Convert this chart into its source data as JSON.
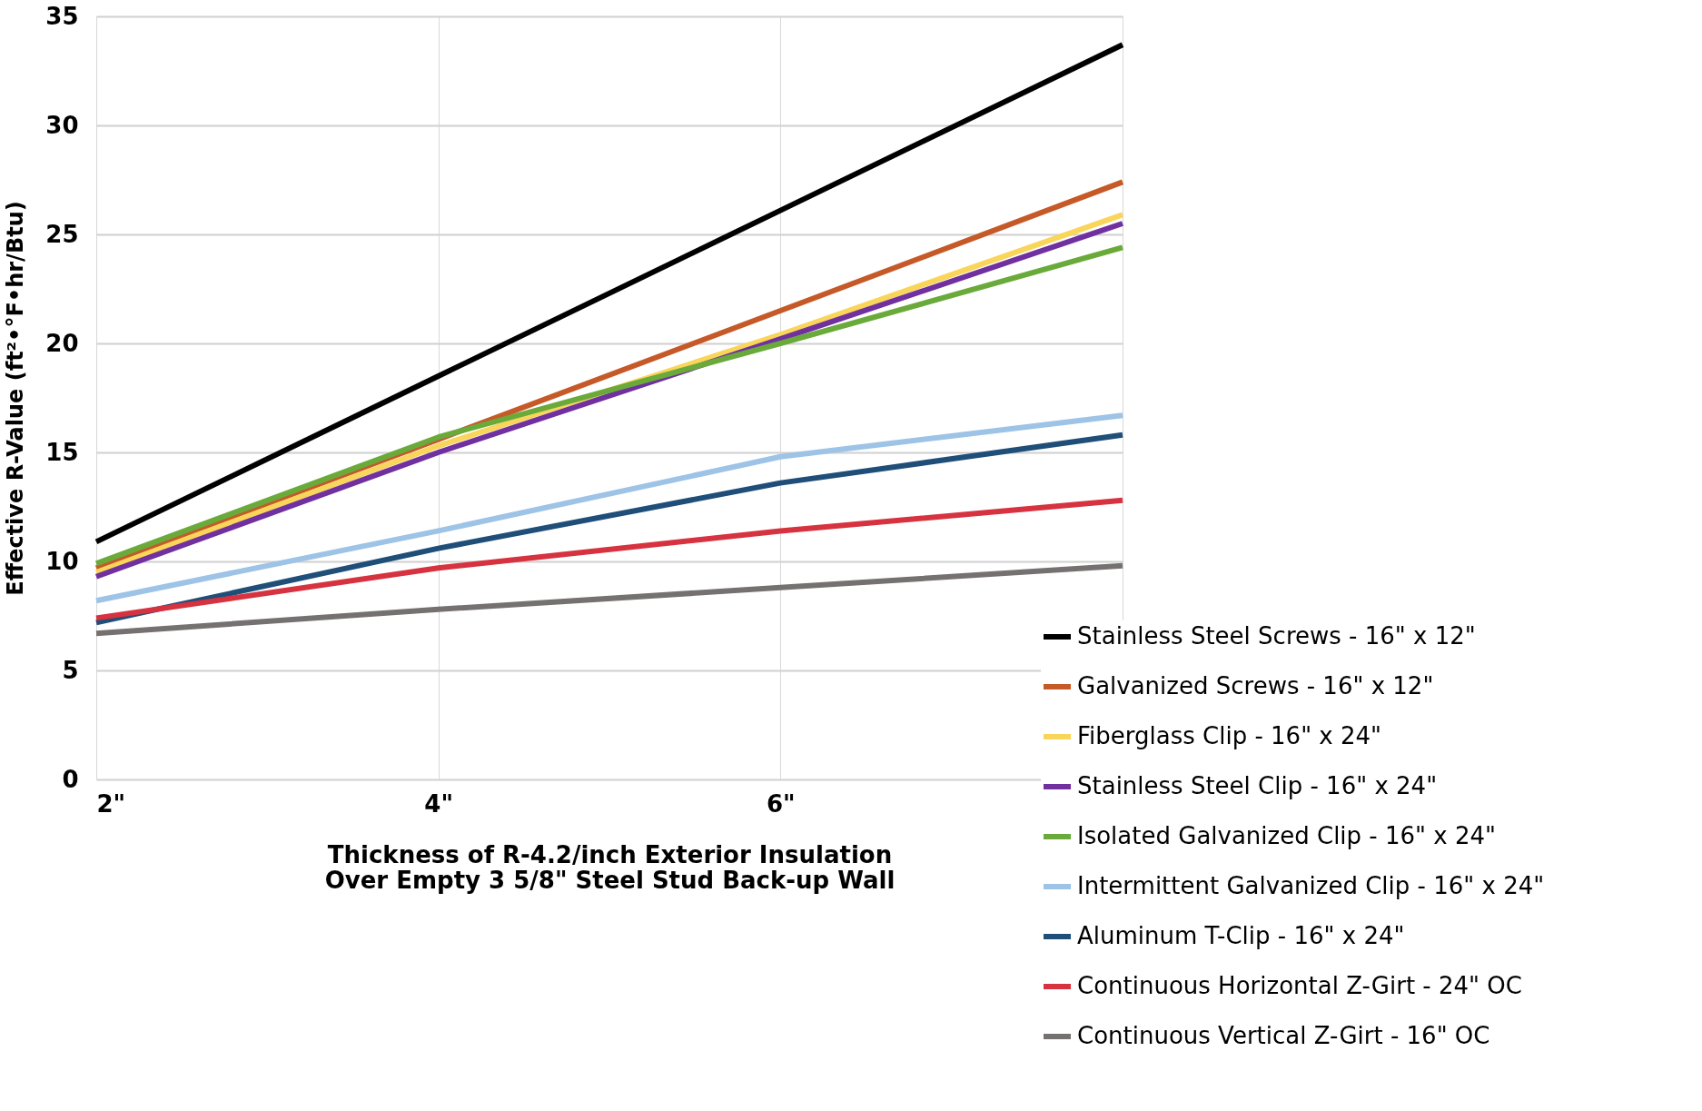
{
  "chart_data": {
    "type": "line",
    "xlabel": "Thickness of R-4.2/inch Exterior Insulation\nOver Empty 3 5/8\" Steel Stud Back-up Wall",
    "ylabel": "Effective R-Value (ft²•°F•hr/Btu)",
    "x": [
      2,
      4,
      6,
      8
    ],
    "xlim": [
      2,
      8
    ],
    "xticks": [
      {
        "value": 2,
        "label": "2\""
      },
      {
        "value": 4,
        "label": "4\""
      },
      {
        "value": 6,
        "label": "6\""
      },
      {
        "value": 8,
        "label": null
      }
    ],
    "ylim": [
      0,
      35
    ],
    "yticks": [
      0,
      5,
      10,
      15,
      20,
      25,
      30,
      35
    ],
    "grid": true,
    "legend": "bottom right",
    "marker": "none",
    "line_style": "solid",
    "series": [
      {
        "name": "Stainless Steel Screws - 16\" x 12\"",
        "color": "#000000",
        "values": [
          10.9,
          18.5,
          26.1,
          33.7
        ]
      },
      {
        "name": "Galvanized Screws - 16\" x 12\"",
        "color": "#c55a28",
        "values": [
          9.7,
          15.6,
          21.5,
          27.4
        ]
      },
      {
        "name": "Fiberglass Clip - 16\" x 24\"",
        "color": "#f9d55a",
        "values": [
          9.5,
          15.3,
          20.4,
          25.9
        ]
      },
      {
        "name": "Stainless Steel Clip - 16\" x 24\"",
        "color": "#7030a0",
        "values": [
          9.3,
          15.0,
          20.2,
          25.5
        ]
      },
      {
        "name": "Isolated Galvanized Clip - 16\" x 24\"",
        "color": "#6aaa3a",
        "values": [
          9.9,
          15.7,
          20.0,
          24.4
        ]
      },
      {
        "name": "Intermittent Galvanized Clip - 16\" x 24\"",
        "color": "#9dc3e6",
        "values": [
          8.2,
          11.4,
          14.8,
          16.7
        ]
      },
      {
        "name": "Aluminum T-Clip - 16\" x 24\"",
        "color": "#1f4e79",
        "values": [
          7.2,
          10.6,
          13.6,
          15.8
        ]
      },
      {
        "name": "Continuous Horizontal Z-Girt - 24\" OC",
        "color": "#d6323f",
        "values": [
          7.4,
          9.7,
          11.4,
          12.8
        ]
      },
      {
        "name": "Continuous Vertical Z-Girt - 16\" OC",
        "color": "#767171",
        "values": [
          6.7,
          7.8,
          8.8,
          9.8
        ]
      }
    ]
  }
}
